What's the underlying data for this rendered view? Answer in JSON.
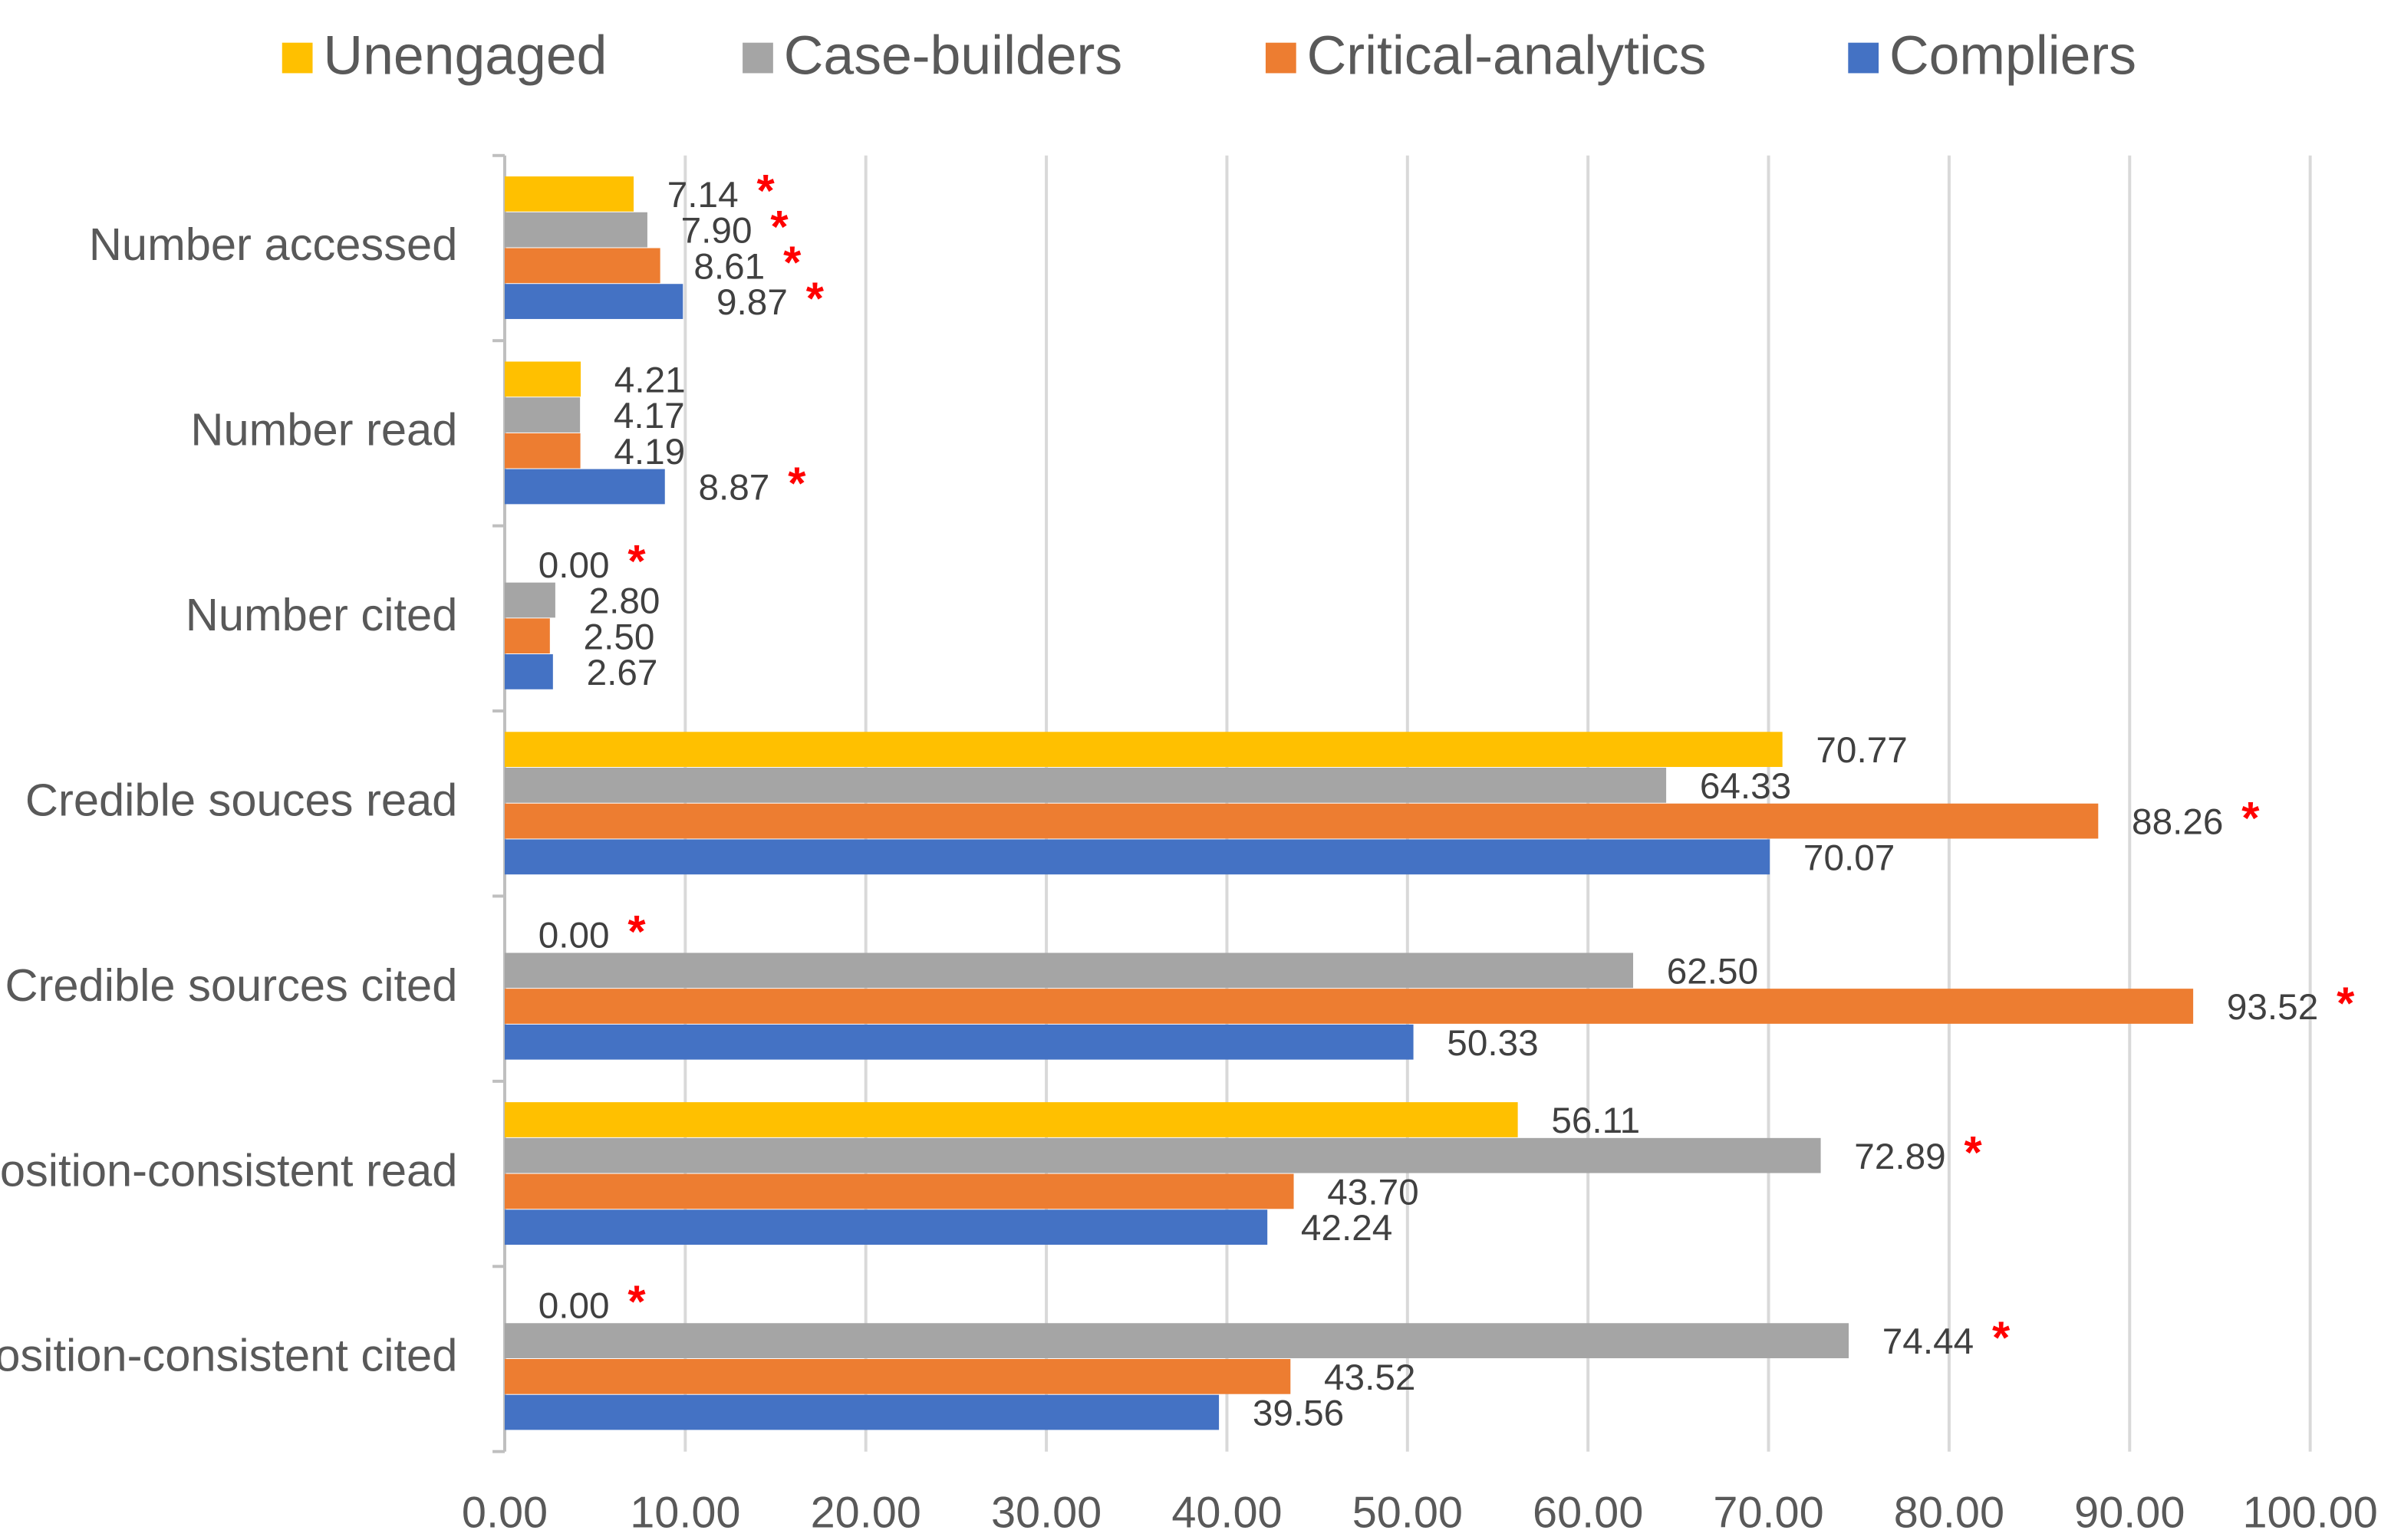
{
  "chart_data": {
    "type": "hbar",
    "categories": [
      "Number accessed",
      "Number read",
      "Number cited",
      "Credible souces read",
      "Credible sources cited",
      "Position-consistent read",
      "Position-consistent cited"
    ],
    "marker": "*",
    "series": [
      {
        "name": "Unengaged",
        "color": "#ffc000",
        "values": [
          7.14,
          4.21,
          0,
          70.77,
          0,
          56.11,
          0
        ],
        "value_labels": [
          "7.14",
          "4.21",
          "0.00",
          "70.77",
          "0.00",
          "56.11",
          "0.00"
        ],
        "significant": [
          true,
          false,
          true,
          false,
          true,
          false,
          true
        ]
      },
      {
        "name": "Case-builders",
        "color": "#a5a5a5",
        "values": [
          7.9,
          4.17,
          2.8,
          64.33,
          62.5,
          72.89,
          74.44
        ],
        "value_labels": [
          "7.90",
          "4.17",
          "2.80",
          "64.33",
          "62.50",
          "72.89",
          "74.44"
        ],
        "significant": [
          true,
          false,
          false,
          false,
          false,
          true,
          true
        ]
      },
      {
        "name": "Critical-analytics",
        "color": "#ed7d31",
        "values": [
          8.61,
          4.19,
          2.5,
          88.26,
          93.52,
          43.7,
          43.52
        ],
        "value_labels": [
          "8.61",
          "4.19",
          "2.50",
          "88.26",
          "93.52",
          "43.70",
          "43.52"
        ],
        "significant": [
          true,
          false,
          false,
          true,
          true,
          false,
          false
        ]
      },
      {
        "name": "Compliers",
        "color": "#4472c4",
        "values": [
          9.87,
          8.87,
          2.67,
          70.07,
          50.33,
          42.24,
          39.56
        ],
        "value_labels": [
          "9.87",
          "8.87",
          "2.67",
          "70.07",
          "50.33",
          "42.24",
          "39.56"
        ],
        "significant": [
          true,
          true,
          false,
          false,
          false,
          false,
          false
        ]
      }
    ],
    "xlim": [
      0,
      100
    ],
    "xticks": [
      {
        "value": 0,
        "label": "0.00"
      },
      {
        "value": 10,
        "label": "10.00"
      },
      {
        "value": 20,
        "label": "20.00"
      },
      {
        "value": 30,
        "label": "30.00"
      },
      {
        "value": 40,
        "label": "40.00"
      },
      {
        "value": 50,
        "label": "50.00"
      },
      {
        "value": 60,
        "label": "60.00"
      },
      {
        "value": 70,
        "label": "70.00"
      },
      {
        "value": 80,
        "label": "80.00"
      },
      {
        "value": 90,
        "label": "90.00"
      },
      {
        "value": 100,
        "label": "100.00"
      }
    ],
    "grid": true,
    "legend": "top"
  }
}
